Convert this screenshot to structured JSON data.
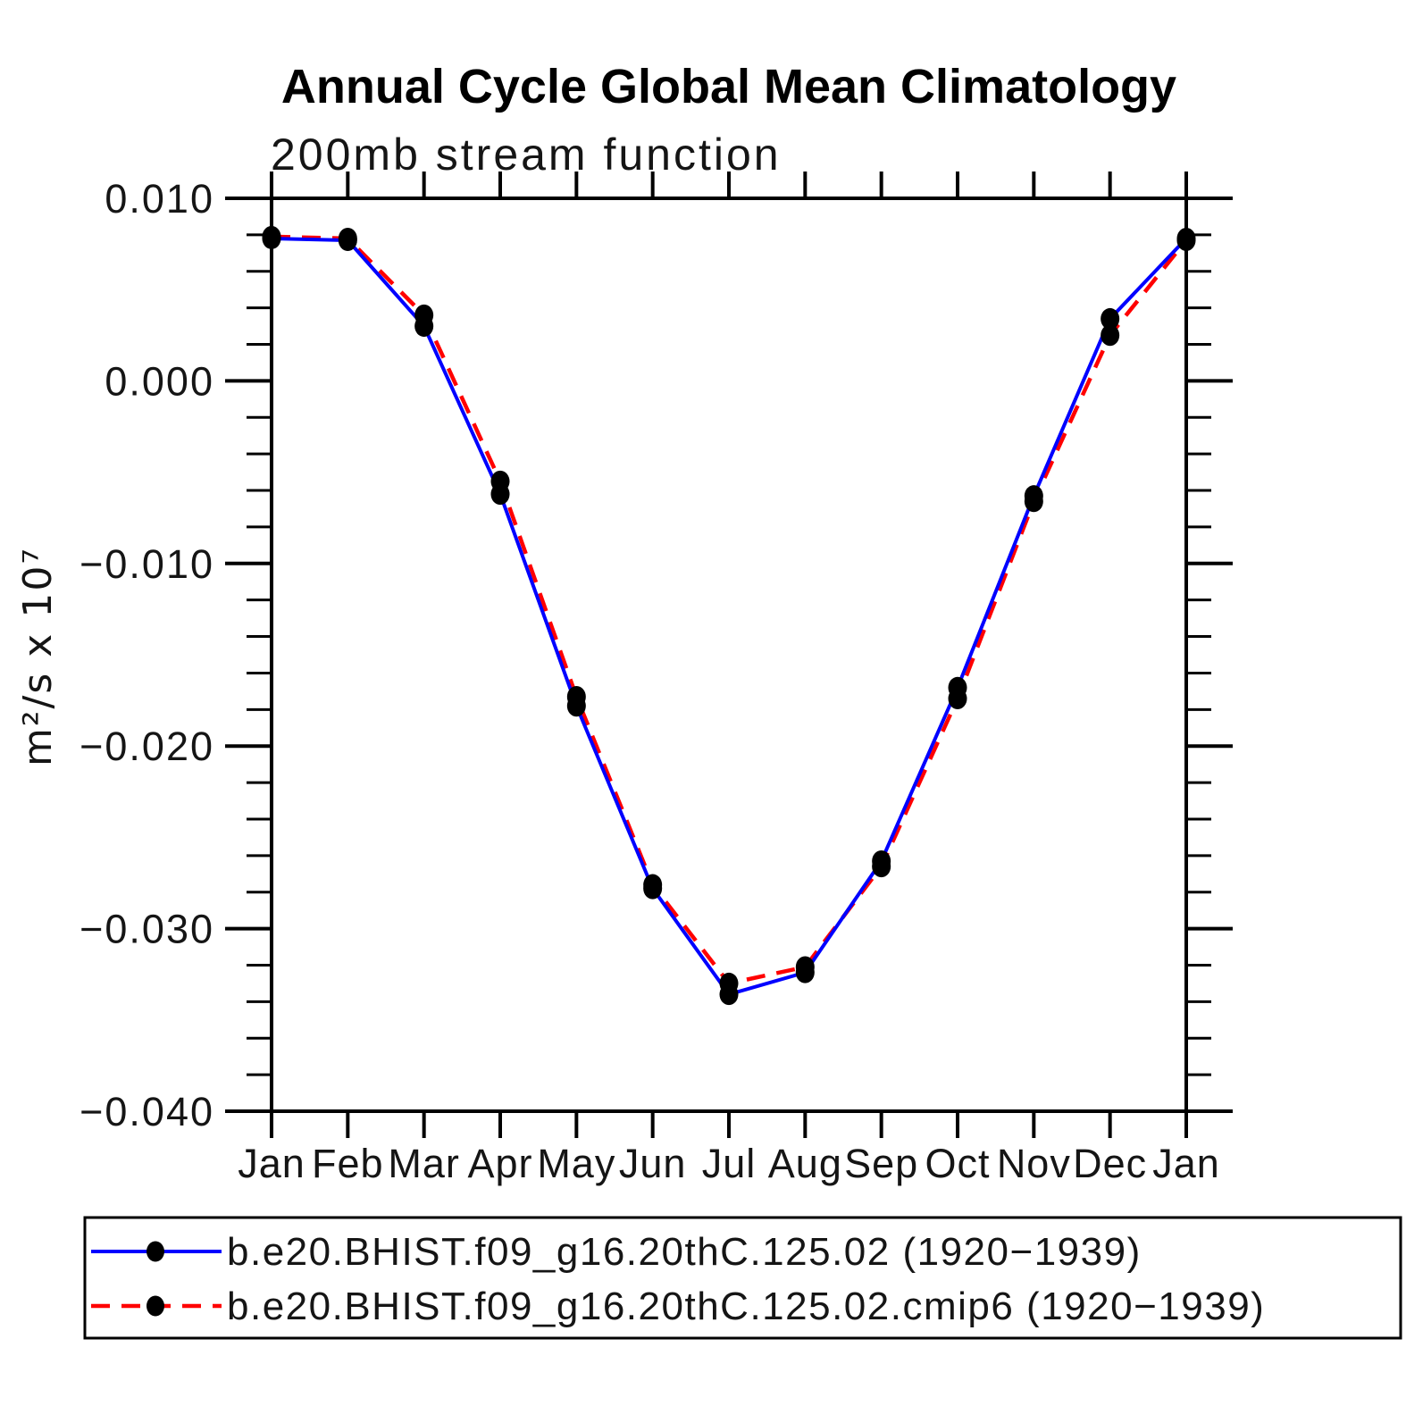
{
  "header": {
    "title": "Annual Cycle Global Mean Climatology",
    "subtitle": "200mb stream function"
  },
  "chart_data": {
    "type": "line",
    "categories": [
      "Jan",
      "Feb",
      "Mar",
      "Apr",
      "May",
      "Jun",
      "Jul",
      "Aug",
      "Sep",
      "Oct",
      "Nov",
      "Dec",
      "Jan"
    ],
    "series": [
      {
        "name": "b.e20.BHIST.f09_g16.20thC.125.02",
        "label": "b.e20.BHIST.f09_g16.20thC.125.02 (1920−1939)",
        "color": "#0000ff",
        "style": "solid",
        "line_width": 4,
        "values": [
          0.0078,
          0.0077,
          0.003,
          -0.0062,
          -0.0178,
          -0.0278,
          -0.0336,
          -0.0324,
          -0.0263,
          -0.0168,
          -0.0063,
          0.0034,
          0.0078
        ]
      },
      {
        "name": "b.e20.BHIST.f09_g16.20thC.125.02.cmip6",
        "label": "b.e20.BHIST.f09_g16.20thC.125.02.cmip6 (1920−1939)",
        "color": "#ff0000",
        "style": "dashed",
        "line_width": 4.5,
        "values": [
          0.0079,
          0.0078,
          0.0036,
          -0.0055,
          -0.0173,
          -0.0276,
          -0.033,
          -0.0321,
          -0.0266,
          -0.0174,
          -0.0066,
          0.0025,
          0.0077
        ]
      }
    ],
    "marker": "filled-circle",
    "marker_color": "#000000",
    "xlabel": "",
    "ylabel": "m²/s x 10⁷",
    "ylim": [
      -0.04,
      0.01
    ],
    "yticks": [
      {
        "value": 0.01,
        "label": "0.010"
      },
      {
        "value": 0.0,
        "label": "0.000"
      },
      {
        "value": -0.01,
        "label": "−0.010"
      },
      {
        "value": -0.02,
        "label": "−0.020"
      },
      {
        "value": -0.03,
        "label": "−0.030"
      },
      {
        "value": -0.04,
        "label": "−0.040"
      }
    ],
    "y_minor_step": 0.002,
    "grid": false,
    "legend_position": "bottom"
  }
}
